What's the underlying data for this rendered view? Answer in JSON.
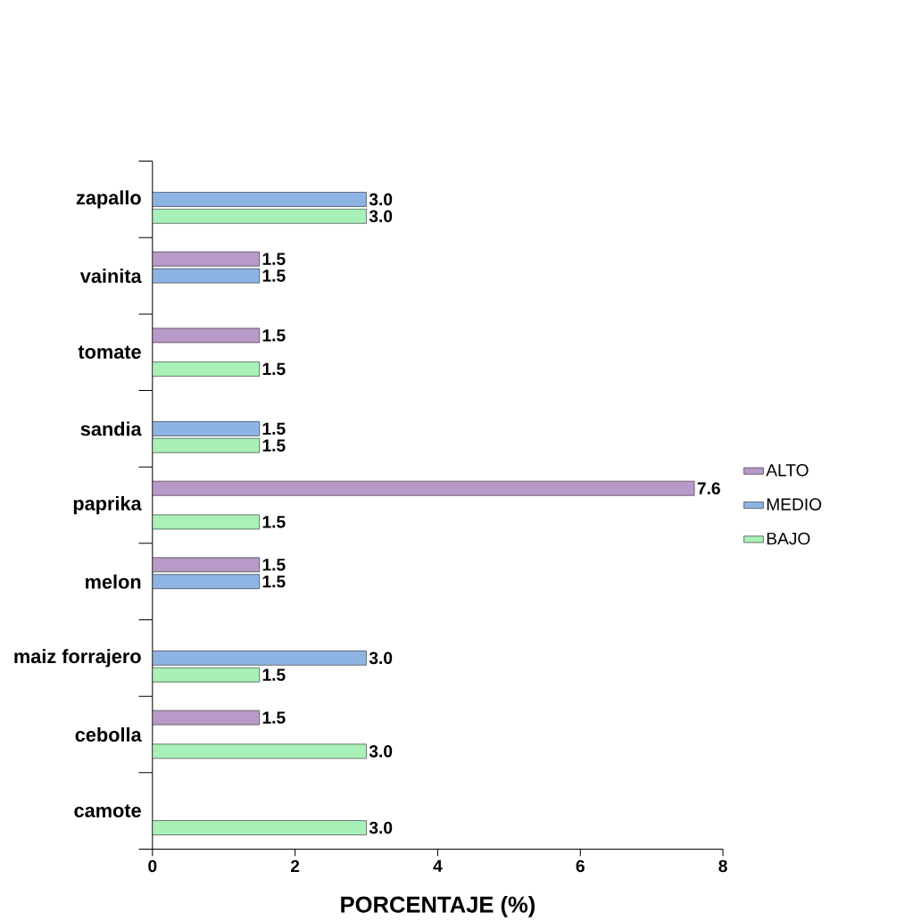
{
  "chart_data": {
    "type": "bar",
    "orientation": "horizontal",
    "xlabel": "PORCENTAJE (%)",
    "categories": [
      "zapallo",
      "vainita",
      "tomate",
      "sandia",
      "paprika",
      "melon",
      "maiz forrajero",
      "cebolla",
      "camote"
    ],
    "series": [
      {
        "name": "ALTO",
        "color": "#b79ac8",
        "values": [
          null,
          1.5,
          1.5,
          null,
          7.6,
          1.5,
          null,
          1.5,
          null
        ],
        "value_labels": [
          null,
          "1.5",
          "1.5",
          null,
          "7.6",
          "1.5",
          null,
          "1.5",
          null
        ]
      },
      {
        "name": "MEDIO",
        "color": "#8eb4e3",
        "values": [
          3.0,
          1.5,
          null,
          1.5,
          null,
          1.5,
          3.0,
          null,
          null
        ],
        "value_labels": [
          "3.0",
          "1.5",
          null,
          "1.5",
          null,
          "1.5",
          "3.0",
          null,
          null
        ]
      },
      {
        "name": "BAJO",
        "color": "#a8f0b8",
        "values": [
          3.0,
          null,
          1.5,
          1.5,
          1.5,
          null,
          1.5,
          3.0,
          3.0
        ],
        "value_labels": [
          "3.0",
          null,
          "1.5",
          "1.5",
          "1.5",
          null,
          "1.5",
          "3.0",
          "3.0"
        ]
      }
    ],
    "xlim": [
      0,
      8
    ],
    "xticks": [
      0,
      2,
      4,
      6,
      8
    ],
    "legend": "right"
  }
}
